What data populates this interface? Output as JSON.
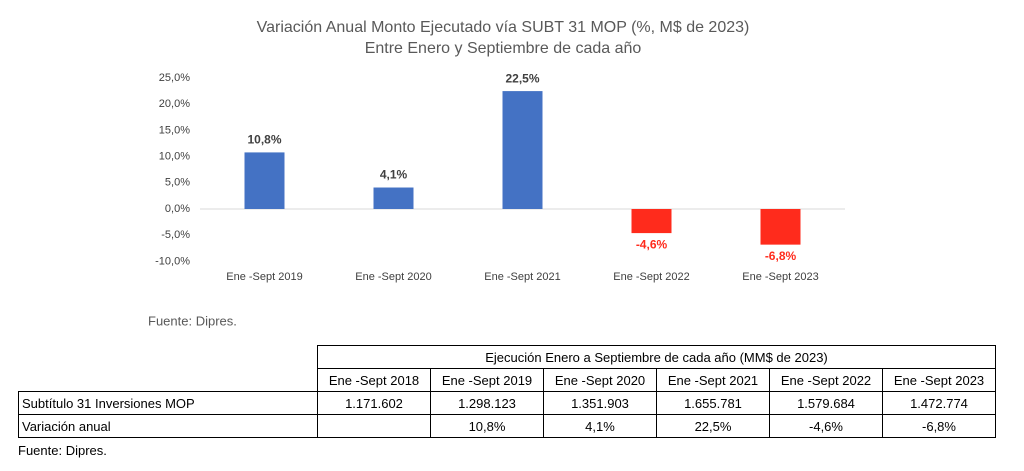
{
  "chart_data": {
    "type": "bar",
    "title": "Variación Anual Monto Ejecutado vía SUBT 31 MOP (%, M$ de 2023)",
    "subtitle": "Entre Enero y Septiembre de cada año",
    "categories": [
      "Ene -Sept 2019",
      "Ene -Sept 2020",
      "Ene -Sept 2021",
      "Ene -Sept 2022",
      "Ene -Sept 2023"
    ],
    "values": [
      10.8,
      4.1,
      22.5,
      -4.6,
      -6.8
    ],
    "value_labels": [
      "10,8%",
      "4,1%",
      "22,5%",
      "-4,6%",
      "-6,8%"
    ],
    "colors": [
      "#4472c4",
      "#4472c4",
      "#4472c4",
      "#ff2b1c",
      "#ff2b1c"
    ],
    "label_colors": [
      "#404040",
      "#404040",
      "#404040",
      "#ff2b1c",
      "#ff2b1c"
    ],
    "ylim": [
      -10,
      25
    ],
    "yticks": [
      {
        "value": 25,
        "label": "25,0%"
      },
      {
        "value": 20,
        "label": "20,0%"
      },
      {
        "value": 15,
        "label": "15,0%"
      },
      {
        "value": 10,
        "label": "10,0%"
      },
      {
        "value": 5,
        "label": "5,0%"
      },
      {
        "value": 0,
        "label": "0,0%"
      },
      {
        "value": -5,
        "label": "-5,0%"
      },
      {
        "value": -10,
        "label": "-10,0%"
      }
    ],
    "grid": false,
    "note": "Fuente: Dipres."
  },
  "table": {
    "title": "Ejecución Enero a Septiembre de cada año (MM$ de 2023)",
    "columns": [
      "Ene -Sept 2018",
      "Ene -Sept 2019",
      "Ene -Sept 2020",
      "Ene -Sept 2021",
      "Ene -Sept 2022",
      "Ene -Sept 2023"
    ],
    "rows": [
      [
        "Subtítulo 31 Inversiones MOP",
        "1.171.602",
        "1.298.123",
        "1.351.903",
        "1.655.781",
        "1.579.684",
        "1.472.774"
      ],
      [
        "Variación anual",
        null,
        "10,8%",
        "4,1%",
        "22,5%",
        "-4,6%",
        "-6,8%"
      ]
    ],
    "note": "Fuente: Dipres."
  }
}
